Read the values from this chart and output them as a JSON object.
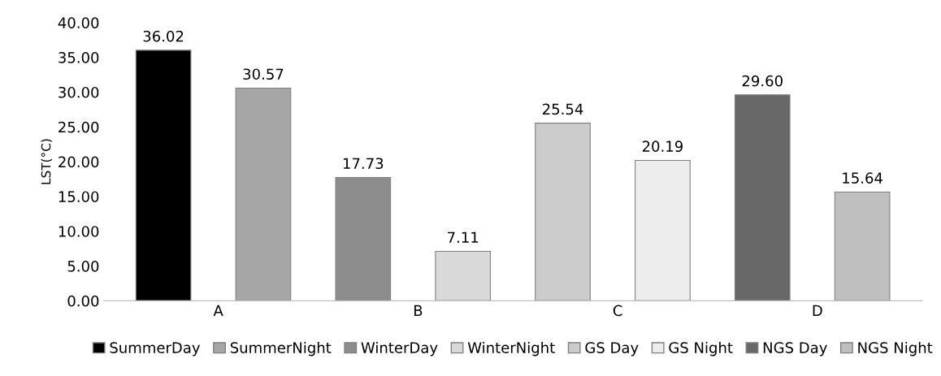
{
  "chart_data": {
    "type": "bar",
    "ylabel": "LST(°C)",
    "categories": [
      "A",
      "B",
      "C",
      "D"
    ],
    "series": [
      {
        "name": "SummerDay",
        "color": "#000000",
        "values": [
          36.02,
          null,
          null,
          null
        ],
        "value_labels": [
          "36.02",
          null,
          null,
          null
        ]
      },
      {
        "name": "SummerNight",
        "color": "#a6a6a6",
        "values": [
          30.57,
          null,
          null,
          null
        ],
        "value_labels": [
          "30.57",
          null,
          null,
          null
        ]
      },
      {
        "name": "WinterDay",
        "color": "#8c8c8c",
        "values": [
          null,
          17.73,
          null,
          null
        ],
        "value_labels": [
          null,
          "17.73",
          null,
          null
        ]
      },
      {
        "name": "WinterNight",
        "color": "#d9d9d9",
        "values": [
          null,
          7.11,
          null,
          null
        ],
        "value_labels": [
          null,
          "7.11",
          null,
          null
        ]
      },
      {
        "name": "GS Day",
        "color": "#cccccc",
        "values": [
          null,
          null,
          25.54,
          null
        ],
        "value_labels": [
          null,
          null,
          "25.54",
          null
        ]
      },
      {
        "name": "GS Night",
        "color": "#ededed",
        "values": [
          null,
          null,
          20.19,
          null
        ],
        "value_labels": [
          null,
          null,
          "20.19",
          null
        ]
      },
      {
        "name": "NGS Day",
        "color": "#686868",
        "values": [
          null,
          null,
          null,
          29.6
        ],
        "value_labels": [
          null,
          null,
          null,
          "29.60"
        ]
      },
      {
        "name": "NGS Night",
        "color": "#bfbfbf",
        "values": [
          null,
          null,
          null,
          15.64
        ],
        "value_labels": [
          null,
          null,
          null,
          "15.64"
        ]
      }
    ],
    "ylim": [
      0,
      40
    ],
    "yticks": [
      {
        "value": 0,
        "label": "0.00"
      },
      {
        "value": 5,
        "label": "5.00"
      },
      {
        "value": 10,
        "label": "10.00"
      },
      {
        "value": 15,
        "label": "15.00"
      },
      {
        "value": 20,
        "label": "20.00"
      },
      {
        "value": 25,
        "label": "25.00"
      },
      {
        "value": 30,
        "label": "30.00"
      },
      {
        "value": 35,
        "label": "35.00"
      },
      {
        "value": 40,
        "label": "40.00"
      }
    ],
    "grid": false,
    "legend": "bottom"
  }
}
